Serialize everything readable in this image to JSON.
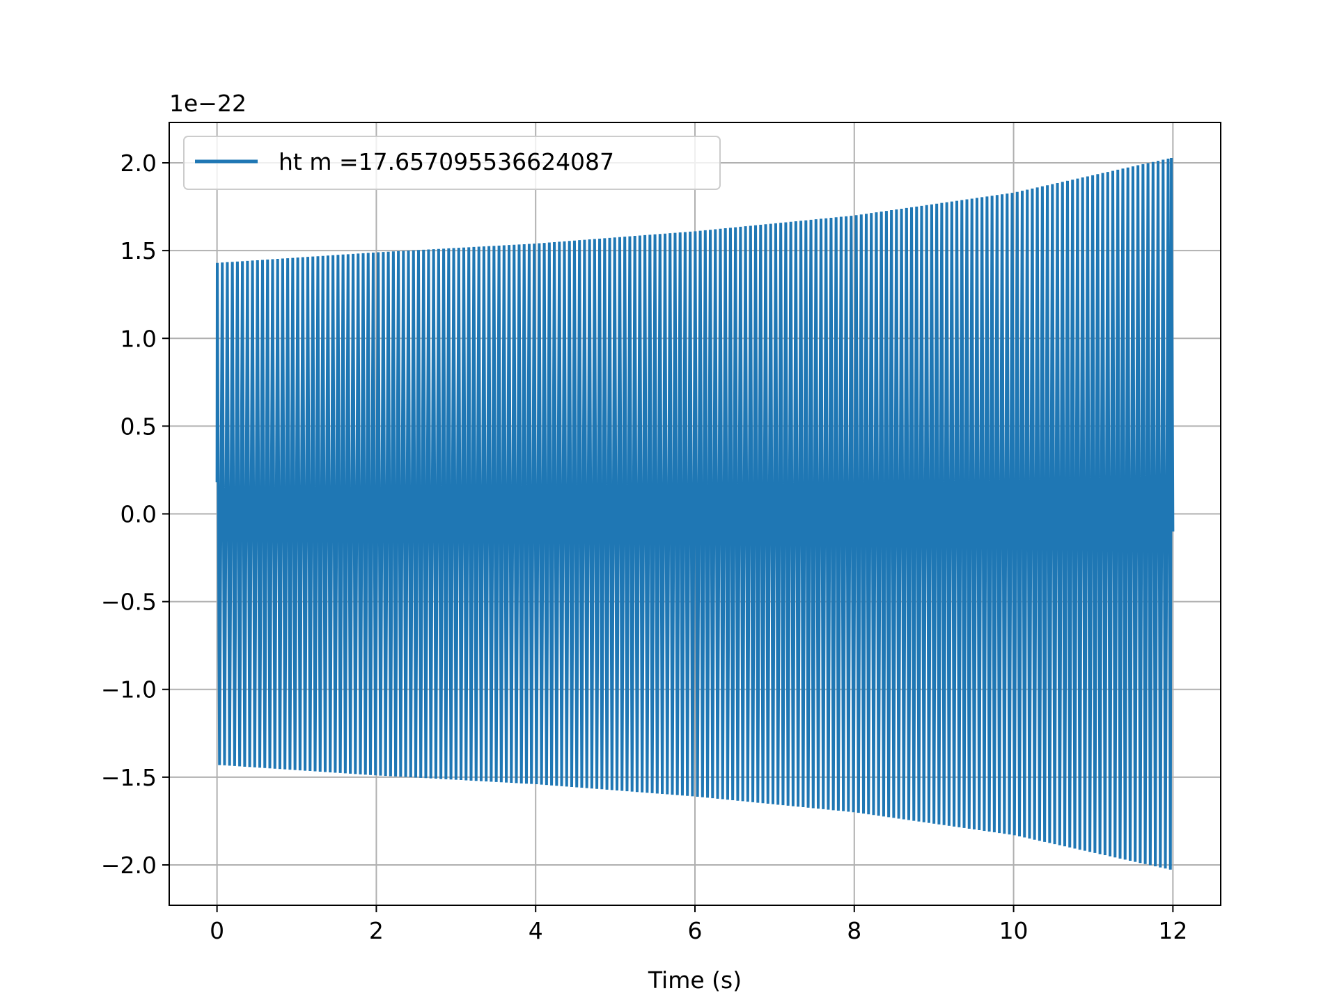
{
  "chart_data": {
    "type": "line",
    "title": "",
    "xlabel": "Time (s)",
    "ylabel": "",
    "y_offset_label": "1e−22",
    "xlim": [
      -0.6,
      12.6
    ],
    "ylim": [
      -2.23,
      2.23
    ],
    "x_ticks": [
      0,
      2,
      4,
      6,
      8,
      10,
      12
    ],
    "x_tick_labels": [
      "0",
      "2",
      "4",
      "6",
      "8",
      "10",
      "12"
    ],
    "y_ticks": [
      -2.0,
      -1.5,
      -1.0,
      -0.5,
      0.0,
      0.5,
      1.0,
      1.5,
      2.0
    ],
    "y_tick_labels": [
      "−2.0",
      "−1.5",
      "−1.0",
      "−0.5",
      "0.0",
      "0.5",
      "1.0",
      "1.5",
      "2.0"
    ],
    "grid": true,
    "legend": {
      "position": "top-left"
    },
    "series": [
      {
        "name": "ht m =17.657095536624087",
        "color": "#1f77b4",
        "t_start": 0,
        "t_end": 12,
        "cycles": 190,
        "start_value": 0.18,
        "end_value": -0.1,
        "envelope": {
          "t": [
            0,
            2,
            4,
            6,
            8,
            10,
            12
          ],
          "amplitude": [
            1.43,
            1.49,
            1.54,
            1.61,
            1.7,
            1.83,
            2.03
          ]
        }
      }
    ]
  }
}
